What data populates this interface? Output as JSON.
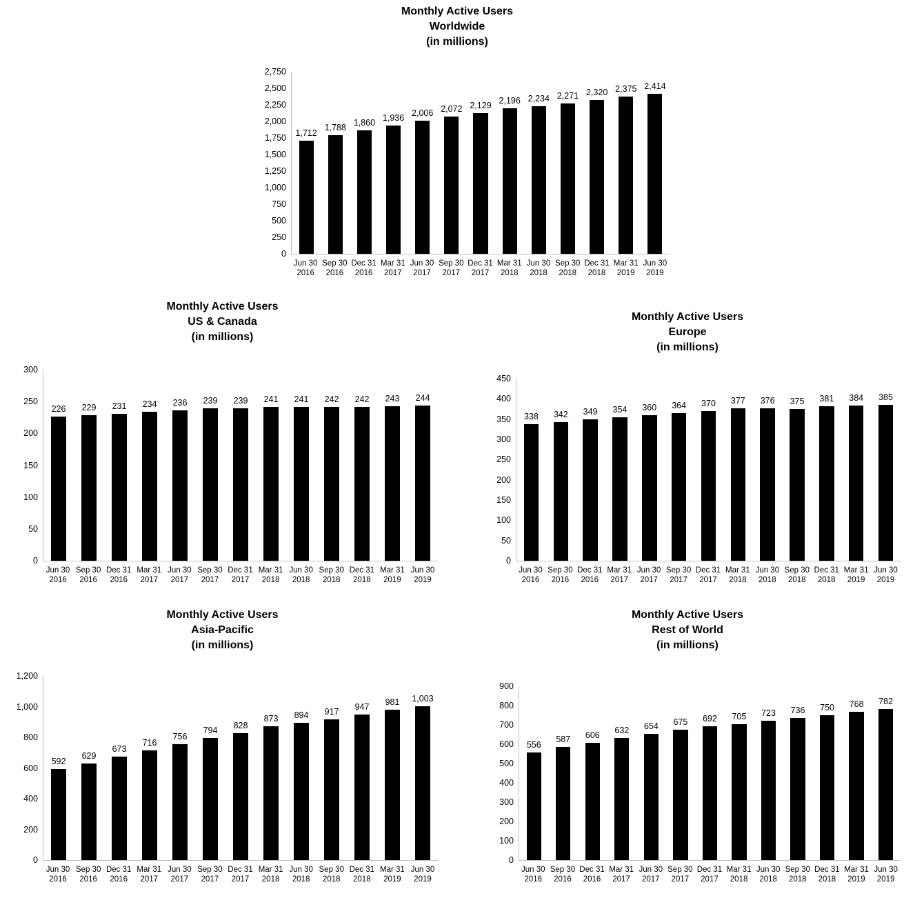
{
  "page": {
    "background": "#ffffff"
  },
  "colors": {
    "bar": "#000000",
    "axis_line": "#bfbfbf",
    "text": "#000000"
  },
  "chart_data": [
    {
      "type": "bar",
      "title": "Monthly Active Users",
      "subtitle": "Worldwide",
      "unit_note": "(in millions)",
      "categories": [
        "Jun 30 2016",
        "Sep 30 2016",
        "Dec 31 2016",
        "Mar 31 2017",
        "Jun 30 2017",
        "Sep 30 2017",
        "Dec 31 2017",
        "Mar 31 2018",
        "Jun 30 2018",
        "Sep 30 2018",
        "Dec 31 2018",
        "Mar 31 2019",
        "Jun 30 2019"
      ],
      "values": [
        1712,
        1788,
        1860,
        1936,
        2006,
        2072,
        2129,
        2196,
        2234,
        2271,
        2320,
        2375,
        2414
      ],
      "value_labels": [
        "1,712",
        "1,788",
        "1,860",
        "1,936",
        "2,006",
        "2,072",
        "2,129",
        "2,196",
        "2,234",
        "2,271",
        "2,320",
        "2,375",
        "2,414"
      ],
      "ylim": [
        0,
        2750
      ],
      "ytick_step": 250,
      "ytick_labels": [
        "2,750",
        "2,500",
        "2,250",
        "2,000",
        "1,750",
        "1,500",
        "1,250",
        "1,000",
        "750",
        "500",
        "250",
        "0"
      ],
      "grid": false,
      "legend": "none"
    },
    {
      "type": "bar",
      "title": "Monthly Active Users",
      "subtitle": "US & Canada",
      "unit_note": "(in millions)",
      "categories": [
        "Jun 30 2016",
        "Sep 30 2016",
        "Dec 31 2016",
        "Mar 31 2017",
        "Jun 30 2017",
        "Sep 30 2017",
        "Dec 31 2017",
        "Mar 31 2018",
        "Jun 30 2018",
        "Sep 30 2018",
        "Dec 31 2018",
        "Mar 31 2019",
        "Jun 30 2019"
      ],
      "values": [
        226,
        229,
        231,
        234,
        236,
        239,
        239,
        241,
        241,
        242,
        242,
        243,
        244
      ],
      "value_labels": [
        "226",
        "229",
        "231",
        "234",
        "236",
        "239",
        "239",
        "241",
        "241",
        "242",
        "242",
        "243",
        "244"
      ],
      "ylim": [
        0,
        300
      ],
      "ytick_step": 50,
      "ytick_labels": [
        "300",
        "250",
        "200",
        "150",
        "100",
        "50",
        "0"
      ],
      "grid": false,
      "legend": "none"
    },
    {
      "type": "bar",
      "title": "Monthly Active Users",
      "subtitle": "Europe",
      "unit_note": "(in millions)",
      "categories": [
        "Jun 30 2016",
        "Sep 30 2016",
        "Dec 31 2016",
        "Mar 31 2017",
        "Jun 30 2017",
        "Sep 30 2017",
        "Dec 31 2017",
        "Mar 31 2018",
        "Jun 30 2018",
        "Sep 30 2018",
        "Dec 31 2018",
        "Mar 31 2019",
        "Jun 30 2019"
      ],
      "values": [
        338,
        342,
        349,
        354,
        360,
        364,
        370,
        377,
        376,
        375,
        381,
        384,
        385
      ],
      "value_labels": [
        "338",
        "342",
        "349",
        "354",
        "360",
        "364",
        "370",
        "377",
        "376",
        "375",
        "381",
        "384",
        "385"
      ],
      "ylim": [
        0,
        450
      ],
      "ytick_step": 50,
      "ytick_labels": [
        "450",
        "400",
        "350",
        "300",
        "250",
        "200",
        "150",
        "100",
        "50",
        "0"
      ],
      "grid": false,
      "legend": "none"
    },
    {
      "type": "bar",
      "title": "Monthly Active Users",
      "subtitle": "Asia-Pacific",
      "unit_note": "(in millions)",
      "categories": [
        "Jun 30 2016",
        "Sep 30 2016",
        "Dec 31 2016",
        "Mar 31 2017",
        "Jun 30 2017",
        "Sep 30 2017",
        "Dec 31 2017",
        "Mar 31 2018",
        "Jun 30 2018",
        "Sep 30 2018",
        "Dec 31 2018",
        "Mar 31 2019",
        "Jun 30 2019"
      ],
      "values": [
        592,
        629,
        673,
        716,
        756,
        794,
        828,
        873,
        894,
        917,
        947,
        981,
        1003
      ],
      "value_labels": [
        "592",
        "629",
        "673",
        "716",
        "756",
        "794",
        "828",
        "873",
        "894",
        "917",
        "947",
        "981",
        "1,003"
      ],
      "ylim": [
        0,
        1200
      ],
      "ytick_step": 200,
      "ytick_labels": [
        "1,200",
        "1,000",
        "800",
        "600",
        "400",
        "200",
        "0"
      ],
      "grid": false,
      "legend": "none"
    },
    {
      "type": "bar",
      "title": "Monthly Active Users",
      "subtitle": "Rest of World",
      "unit_note": "(in millions)",
      "categories": [
        "Jun 30 2016",
        "Sep 30 2016",
        "Dec 31 2016",
        "Mar 31 2017",
        "Jun 30 2017",
        "Sep 30 2017",
        "Dec 31 2017",
        "Mar 31 2018",
        "Jun 30 2018",
        "Sep 30 2018",
        "Dec 31 2018",
        "Mar 31 2019",
        "Jun 30 2019"
      ],
      "values": [
        556,
        587,
        606,
        632,
        654,
        675,
        692,
        705,
        723,
        736,
        750,
        768,
        782
      ],
      "value_labels": [
        "556",
        "587",
        "606",
        "632",
        "654",
        "675",
        "692",
        "705",
        "723",
        "736",
        "750",
        "768",
        "782"
      ],
      "ylim": [
        0,
        900
      ],
      "ytick_step": 100,
      "ytick_labels": [
        "900",
        "800",
        "700",
        "600",
        "500",
        "400",
        "300",
        "200",
        "100",
        "0"
      ],
      "grid": false,
      "legend": "none"
    }
  ]
}
